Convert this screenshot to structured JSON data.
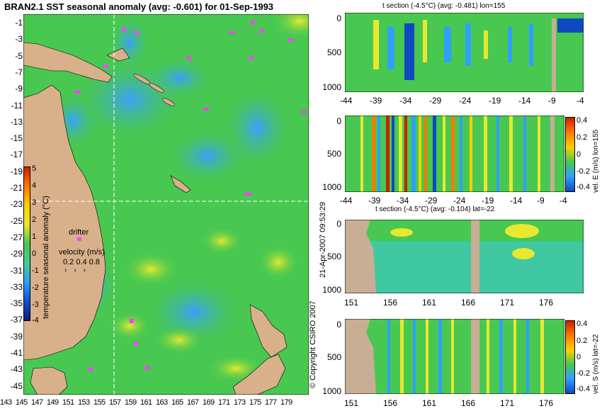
{
  "map": {
    "title": "BRAN2.1 SST seasonal anomaly (avg: -0.601) for 01-Sep-1993",
    "y_ticks": [
      "-1",
      "-3",
      "-5",
      "-7",
      "-9",
      "-11",
      "-13",
      "-15",
      "-17",
      "-19",
      "-21",
      "-23",
      "-25",
      "-27",
      "-29",
      "-31",
      "-33",
      "-35",
      "-37",
      "-39",
      "-41",
      "-43",
      "-45"
    ],
    "x_ticks": [
      "143",
      "145",
      "147",
      "149",
      "151",
      "153",
      "155",
      "157",
      "159",
      "161",
      "163",
      "165",
      "167",
      "169",
      "171",
      "173",
      "175",
      "177",
      "179"
    ],
    "colorbar_label": "temperature seasonal anomaly (°C)",
    "colorbar_ticks": [
      "5",
      "4",
      "3",
      "2",
      "1",
      "0",
      "-1",
      "-2",
      "-3",
      "-4"
    ],
    "drifter_label": "drifter",
    "velocity_label": "velocity (m/s)",
    "velocity_ticks": "0.2 0.4 0.8",
    "crosshair": {
      "lon": 155,
      "lat": -22
    },
    "colors": {
      "land": "#d8b08a",
      "ocean": "#48c850",
      "drifter": "#ff40ff",
      "crosshair": "#ffffff"
    }
  },
  "side_text": {
    "date": "21-Apr-2007 09:53:29",
    "copyright": "© Copyright CSIRO 2007"
  },
  "panels": [
    {
      "id": "t-lon",
      "title": "t section (-4.5°C) (avg: -0.481) lon=155",
      "x_ticks": [
        "-44",
        "-39",
        "-34",
        "-29",
        "-24",
        "-19",
        "-14",
        "-9",
        "-4"
      ],
      "y_ticks": [
        "0",
        "500",
        "1000"
      ],
      "colorbar": null
    },
    {
      "id": "u-lon",
      "title": "",
      "x_ticks": [
        "-44",
        "-39",
        "-34",
        "-29",
        "-24",
        "-19",
        "-14",
        "-9",
        "-4"
      ],
      "y_ticks": [
        "0",
        "500",
        "1000"
      ],
      "colorbar": {
        "label": "vel. E (m/s) lon=155",
        "ticks": [
          "0.4",
          "0.2",
          "0",
          "-0.2",
          "-0.4"
        ]
      }
    },
    {
      "id": "t-lat",
      "title": "t section (-4.5°C) (avg: -0.104) lat=-22",
      "x_ticks": [
        "151",
        "156",
        "161",
        "166",
        "171",
        "176"
      ],
      "y_ticks": [
        "0",
        "500",
        "1000"
      ],
      "colorbar": null
    },
    {
      "id": "v-lat",
      "title": "",
      "x_ticks": [
        "151",
        "156",
        "161",
        "166",
        "171",
        "176"
      ],
      "y_ticks": [
        "0",
        "500",
        "1000"
      ],
      "colorbar": {
        "label": "vel. S (m/s) lat=-22",
        "ticks": [
          "0.4",
          "0.2",
          "0",
          "-0.2",
          "-0.4"
        ]
      }
    }
  ]
}
